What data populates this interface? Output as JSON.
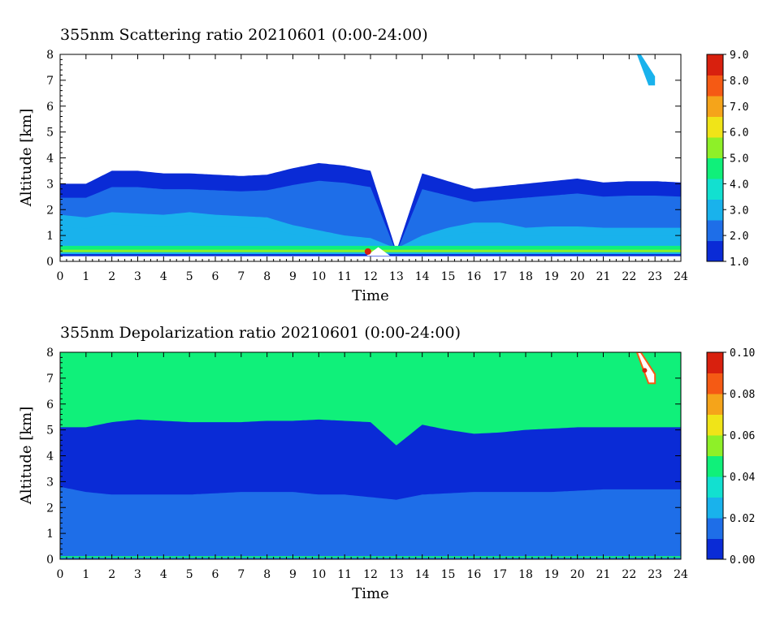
{
  "chart_data": [
    {
      "type": "heatmap",
      "title": "355nm Scattering ratio  20210601 (0:00-24:00)",
      "xlabel": "Time",
      "ylabel": "Altitude [km]",
      "xlim": [
        0,
        24
      ],
      "ylim": [
        0,
        8
      ],
      "x_ticks": [
        "0",
        "1",
        "2",
        "3",
        "4",
        "5",
        "6",
        "7",
        "8",
        "9",
        "10",
        "11",
        "12",
        "13",
        "14",
        "15",
        "16",
        "17",
        "18",
        "19",
        "20",
        "21",
        "22",
        "23",
        "24"
      ],
      "y_ticks": [
        "0",
        "1",
        "2",
        "3",
        "4",
        "5",
        "6",
        "7",
        "8"
      ],
      "colorbar": {
        "range": [
          1.0,
          9.0
        ],
        "labels": [
          "1.0",
          "2.0",
          "3.0",
          "4.0",
          "5.0",
          "6.0",
          "7.0",
          "8.0",
          "9.0"
        ],
        "colors": [
          "#0a2bd6",
          "#1e6ee8",
          "#19b2ec",
          "#12e0d0",
          "#10f07a",
          "#8ef028",
          "#f0e418",
          "#f5a41a",
          "#f55a14",
          "#d8200e"
        ]
      },
      "features": {
        "aerosol_layer_top_km": [
          3.0,
          3.0,
          3.5,
          3.5,
          3.4,
          3.4,
          3.35,
          3.3,
          3.35,
          3.6,
          3.8,
          3.7,
          3.5,
          0.4,
          3.4,
          3.1,
          2.8,
          2.9,
          3.0,
          3.1,
          3.2,
          3.05,
          3.1,
          3.1,
          3.05
        ],
        "mid_layer_top_km": [
          1.8,
          1.7,
          1.9,
          1.85,
          1.8,
          1.9,
          1.8,
          1.75,
          1.7,
          1.4,
          1.2,
          1.0,
          0.9,
          0.5,
          1.0,
          1.3,
          1.5,
          1.5,
          1.3,
          1.35,
          1.35,
          1.3,
          1.3,
          1.3,
          1.3
        ],
        "surface_layer_km": [
          0.35,
          0.6
        ],
        "surface_layer_value": 4.5,
        "cloud": {
          "t_start": 22.3,
          "t_end": 23.0,
          "alt_bottom_km": 6.8,
          "alt_top_km": 8.0
        }
      }
    },
    {
      "type": "heatmap",
      "title": "355nm Depolarization ratio  20210601 (0:00-24:00)",
      "xlabel": "Time",
      "ylabel": "Altitude [km]",
      "xlim": [
        0,
        24
      ],
      "ylim": [
        0,
        8
      ],
      "x_ticks": [
        "0",
        "1",
        "2",
        "3",
        "4",
        "5",
        "6",
        "7",
        "8",
        "9",
        "10",
        "11",
        "12",
        "13",
        "14",
        "15",
        "16",
        "17",
        "18",
        "19",
        "20",
        "21",
        "22",
        "23",
        "24"
      ],
      "y_ticks": [
        "0",
        "1",
        "2",
        "3",
        "4",
        "5",
        "6",
        "7",
        "8"
      ],
      "colorbar": {
        "range": [
          0.0,
          0.1
        ],
        "labels": [
          "0.00",
          "0.02",
          "0.04",
          "0.06",
          "0.08",
          "0.10"
        ],
        "colors": [
          "#0a2bd6",
          "#1e6ee8",
          "#19b2ec",
          "#12e0d0",
          "#10f07a",
          "#8ef028",
          "#f0e418",
          "#f5a41a",
          "#f55a14",
          "#d8200e"
        ]
      },
      "features": {
        "background_value": 0.04,
        "low_depol_top_km": [
          5.1,
          5.1,
          5.3,
          5.4,
          5.35,
          5.3,
          5.3,
          5.3,
          5.35,
          5.35,
          5.4,
          5.35,
          5.3,
          4.4,
          5.2,
          5.0,
          4.85,
          4.9,
          5.0,
          5.05,
          5.1,
          5.1,
          5.1,
          5.1,
          5.1
        ],
        "low_depol_value": 0.005,
        "boundary_layer_top_km": [
          2.8,
          2.6,
          2.5,
          2.5,
          2.5,
          2.5,
          2.55,
          2.6,
          2.6,
          2.6,
          2.5,
          2.5,
          2.4,
          2.3,
          2.5,
          2.55,
          2.6,
          2.6,
          2.6,
          2.6,
          2.65,
          2.7,
          2.7,
          2.7,
          2.7
        ],
        "boundary_layer_value": 0.015,
        "cloud": {
          "t_start": 22.3,
          "t_end": 23.0,
          "alt_bottom_km": 6.8,
          "alt_top_km": 8.0
        }
      }
    }
  ]
}
